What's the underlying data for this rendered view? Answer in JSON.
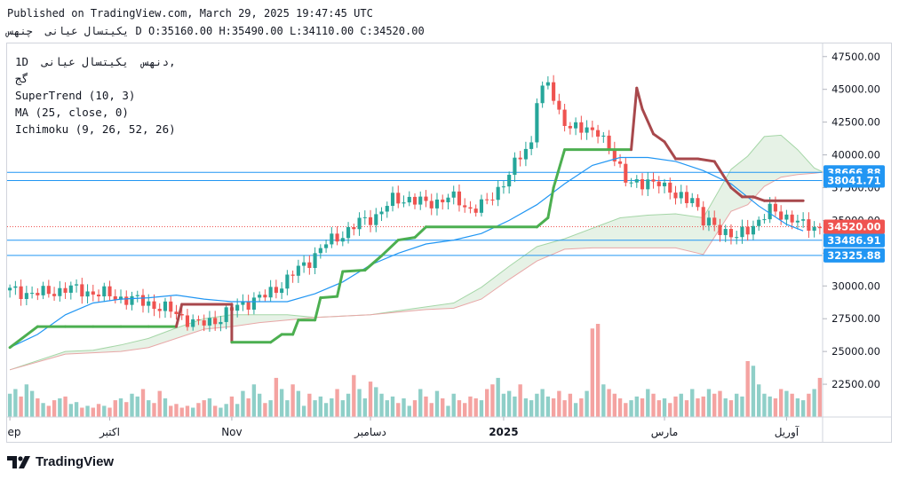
{
  "header": {
    "published": "Published on TradingView.com, March 29, 2025 19:47:45 UTC",
    "symbol": "یکیتسال عیانی",
    "period_label": "چنهس",
    "open": "D O:35160.00",
    "high": "H:35490.00",
    "low": "L:34110.00",
    "close": "C:34520.00"
  },
  "legend": {
    "symbol_line": "1D  دنهس  یکیتسال عیانی,",
    "sub_line": "گج",
    "supertrend": "SuperTrend (10, 3)",
    "ma": "MA (25, close, 0)",
    "ichimoku": "Ichimoku (9, 26, 52, 26)"
  },
  "footer": {
    "brand": "TradingView",
    "logo_icon": "tradingview-logo-icon"
  },
  "colors": {
    "up": "#26a69a",
    "down": "#ef5350",
    "supertrend_up": "#4caf50",
    "supertrend_down": "#a8484c",
    "ma": "#2196f3",
    "cloud": "#e3f1e3",
    "cloud_edge_up": "#a5d6a7",
    "cloud_edge_down": "#e8a7a7",
    "hline": "#2196f3",
    "price_tag": "#ef5350"
  },
  "chart_data": {
    "type": "candlestick",
    "title": "",
    "y_ticks": [
      "47500.00",
      "45000.00",
      "42500.00",
      "40000.00",
      "37500.00",
      "35000.00",
      "32500.00",
      "30000.00",
      "27500.00",
      "25000.00",
      "22500.00"
    ],
    "ylim": [
      20000,
      48500
    ],
    "x_labels": [
      "ep",
      "اکتبر",
      "Nov",
      "دسامبر",
      "2025",
      "مارس",
      "آوریل"
    ],
    "x_label_positions": [
      0,
      18,
      40,
      65,
      89,
      118,
      140
    ],
    "n_candles": 147,
    "last_price": "34520.00",
    "horizontal_levels": [
      {
        "value": 38666.88,
        "label": "38666.88"
      },
      {
        "value": 38041.71,
        "label": "38041.71"
      },
      {
        "value": 33486.91,
        "label": "33486.91"
      },
      {
        "value": 32325.88,
        "label": "32325.88"
      }
    ],
    "close_anchors": [
      [
        0,
        29600
      ],
      [
        6,
        29400
      ],
      [
        10,
        29800
      ],
      [
        15,
        29500
      ],
      [
        20,
        29100
      ],
      [
        25,
        28700
      ],
      [
        30,
        27900
      ],
      [
        34,
        27000
      ],
      [
        38,
        27600
      ],
      [
        42,
        28700
      ],
      [
        46,
        29200
      ],
      [
        50,
        30500
      ],
      [
        54,
        32000
      ],
      [
        57,
        33200
      ],
      [
        60,
        34000
      ],
      [
        63,
        34800
      ],
      [
        66,
        35400
      ],
      [
        69,
        36500
      ],
      [
        72,
        36700
      ],
      [
        75,
        36200
      ],
      [
        79,
        36800
      ],
      [
        83,
        35900
      ],
      [
        86,
        36300
      ],
      [
        88,
        37400
      ],
      [
        91,
        39200
      ],
      [
        94,
        41000
      ],
      [
        95,
        44500
      ],
      [
        97,
        45300
      ],
      [
        99,
        43200
      ],
      [
        101,
        42200
      ],
      [
        103,
        41800
      ],
      [
        106,
        42000
      ],
      [
        109,
        39500
      ],
      [
        111,
        38400
      ],
      [
        114,
        37500
      ],
      [
        117,
        38200
      ],
      [
        120,
        36600
      ],
      [
        123,
        36900
      ],
      [
        125,
        34800
      ],
      [
        127,
        34600
      ],
      [
        129,
        34200
      ],
      [
        131,
        33600
      ],
      [
        134,
        34700
      ],
      [
        137,
        35700
      ],
      [
        141,
        35200
      ],
      [
        143,
        34520
      ]
    ],
    "supertrend_points": [
      [
        0,
        25300
      ],
      [
        5,
        26900
      ],
      [
        10,
        26900
      ],
      [
        15,
        26900
      ],
      [
        20,
        26900
      ],
      [
        25,
        26900
      ],
      [
        30,
        26900
      ],
      [
        31,
        28600
      ],
      [
        40,
        28600
      ],
      [
        40,
        25700
      ],
      [
        47,
        25700
      ],
      [
        49,
        26300
      ],
      [
        51,
        26300
      ],
      [
        52,
        27400
      ],
      [
        55,
        27400
      ],
      [
        56,
        29100
      ],
      [
        59,
        29200
      ],
      [
        60,
        31100
      ],
      [
        64,
        31200
      ],
      [
        67,
        32300
      ],
      [
        70,
        33500
      ],
      [
        73,
        33700
      ],
      [
        75,
        34500
      ],
      [
        95,
        34500
      ],
      [
        97,
        35200
      ],
      [
        98,
        37500
      ],
      [
        100,
        40400
      ],
      [
        112,
        40400
      ],
      [
        113,
        45100
      ],
      [
        114,
        43500
      ],
      [
        116,
        41600
      ],
      [
        118,
        41000
      ],
      [
        120,
        39700
      ],
      [
        124,
        39700
      ],
      [
        127,
        39500
      ],
      [
        130,
        37500
      ],
      [
        132,
        36800
      ],
      [
        134,
        36800
      ],
      [
        136,
        36500
      ],
      [
        143,
        36500
      ]
    ],
    "ma_points": [
      [
        0,
        25300
      ],
      [
        5,
        26300
      ],
      [
        10,
        27800
      ],
      [
        15,
        28700
      ],
      [
        20,
        29000
      ],
      [
        25,
        29100
      ],
      [
        30,
        29300
      ],
      [
        35,
        29000
      ],
      [
        40,
        28800
      ],
      [
        45,
        28800
      ],
      [
        50,
        28800
      ],
      [
        55,
        29400
      ],
      [
        60,
        30300
      ],
      [
        65,
        31600
      ],
      [
        70,
        32500
      ],
      [
        75,
        33200
      ],
      [
        80,
        33500
      ],
      [
        85,
        34000
      ],
      [
        90,
        35000
      ],
      [
        95,
        36200
      ],
      [
        100,
        37800
      ],
      [
        105,
        39200
      ],
      [
        110,
        39800
      ],
      [
        115,
        39800
      ],
      [
        120,
        39500
      ],
      [
        125,
        38800
      ],
      [
        130,
        37800
      ],
      [
        135,
        36100
      ],
      [
        140,
        34700
      ],
      [
        143,
        34200
      ]
    ],
    "cloud_upper": [
      [
        0,
        23600
      ],
      [
        10,
        25000
      ],
      [
        15,
        25100
      ],
      [
        20,
        25500
      ],
      [
        25,
        26000
      ],
      [
        30,
        26800
      ],
      [
        35,
        27500
      ],
      [
        40,
        27800
      ],
      [
        45,
        27800
      ],
      [
        50,
        27800
      ],
      [
        55,
        27600
      ],
      [
        60,
        27700
      ],
      [
        65,
        27800
      ],
      [
        70,
        28100
      ],
      [
        75,
        28400
      ],
      [
        80,
        28700
      ],
      [
        85,
        29900
      ],
      [
        90,
        31500
      ],
      [
        95,
        33000
      ],
      [
        100,
        33600
      ],
      [
        105,
        34400
      ],
      [
        110,
        35200
      ],
      [
        115,
        35400
      ],
      [
        120,
        35500
      ],
      [
        125,
        35200
      ],
      [
        130,
        38900
      ],
      [
        133,
        39900
      ],
      [
        136,
        41400
      ],
      [
        139,
        41500
      ],
      [
        142,
        40400
      ],
      [
        145,
        39000
      ],
      [
        147,
        38600
      ]
    ],
    "cloud_lower": [
      [
        0,
        23600
      ],
      [
        10,
        24800
      ],
      [
        15,
        24900
      ],
      [
        20,
        25000
      ],
      [
        25,
        25300
      ],
      [
        30,
        26000
      ],
      [
        35,
        26700
      ],
      [
        40,
        26900
      ],
      [
        45,
        27200
      ],
      [
        50,
        27400
      ],
      [
        55,
        27600
      ],
      [
        60,
        27700
      ],
      [
        65,
        27800
      ],
      [
        70,
        28000
      ],
      [
        75,
        28200
      ],
      [
        80,
        28300
      ],
      [
        85,
        29000
      ],
      [
        90,
        30500
      ],
      [
        95,
        31900
      ],
      [
        100,
        32800
      ],
      [
        105,
        32900
      ],
      [
        110,
        32900
      ],
      [
        115,
        32900
      ],
      [
        120,
        32900
      ],
      [
        125,
        32400
      ],
      [
        130,
        35700
      ],
      [
        133,
        36200
      ],
      [
        136,
        37600
      ],
      [
        139,
        38300
      ],
      [
        142,
        38500
      ],
      [
        145,
        38600
      ],
      [
        147,
        38700
      ]
    ],
    "volume_relative": [
      0.25,
      0.3,
      0.22,
      0.35,
      0.28,
      0.2,
      0.15,
      0.12,
      0.18,
      0.2,
      0.22,
      0.14,
      0.16,
      0.1,
      0.12,
      0.1,
      0.14,
      0.12,
      0.1,
      0.18,
      0.2,
      0.16,
      0.25,
      0.22,
      0.3,
      0.18,
      0.15,
      0.28,
      0.2,
      0.12,
      0.14,
      0.1,
      0.12,
      0.1,
      0.15,
      0.18,
      0.2,
      0.12,
      0.1,
      0.14,
      0.22,
      0.14,
      0.28,
      0.2,
      0.35,
      0.25,
      0.15,
      0.18,
      0.42,
      0.3,
      0.18,
      0.35,
      0.28,
      0.12,
      0.25,
      0.18,
      0.22,
      0.15,
      0.2,
      0.3,
      0.18,
      0.25,
      0.45,
      0.3,
      0.2,
      0.38,
      0.32,
      0.25,
      0.18,
      0.22,
      0.15,
      0.2,
      0.12,
      0.18,
      0.3,
      0.22,
      0.15,
      0.28,
      0.2,
      0.12,
      0.25,
      0.18,
      0.15,
      0.22,
      0.2,
      0.18,
      0.3,
      0.35,
      0.42,
      0.25,
      0.28,
      0.22,
      0.35,
      0.2,
      0.18,
      0.25,
      0.3,
      0.22,
      0.2,
      0.28,
      0.18,
      0.25,
      0.15,
      0.2,
      0.28,
      0.95,
      1.0,
      0.35,
      0.3,
      0.25,
      0.2,
      0.15,
      0.18,
      0.22,
      0.2,
      0.3,
      0.25,
      0.18,
      0.2,
      0.15,
      0.22,
      0.25,
      0.18,
      0.3,
      0.2,
      0.22,
      0.3,
      0.25,
      0.28,
      0.2,
      0.18,
      0.25,
      0.22,
      0.6,
      0.55,
      0.35,
      0.25,
      0.22,
      0.2,
      0.3,
      0.28,
      0.25,
      0.2,
      0.18,
      0.25,
      0.3,
      0.42
    ]
  }
}
